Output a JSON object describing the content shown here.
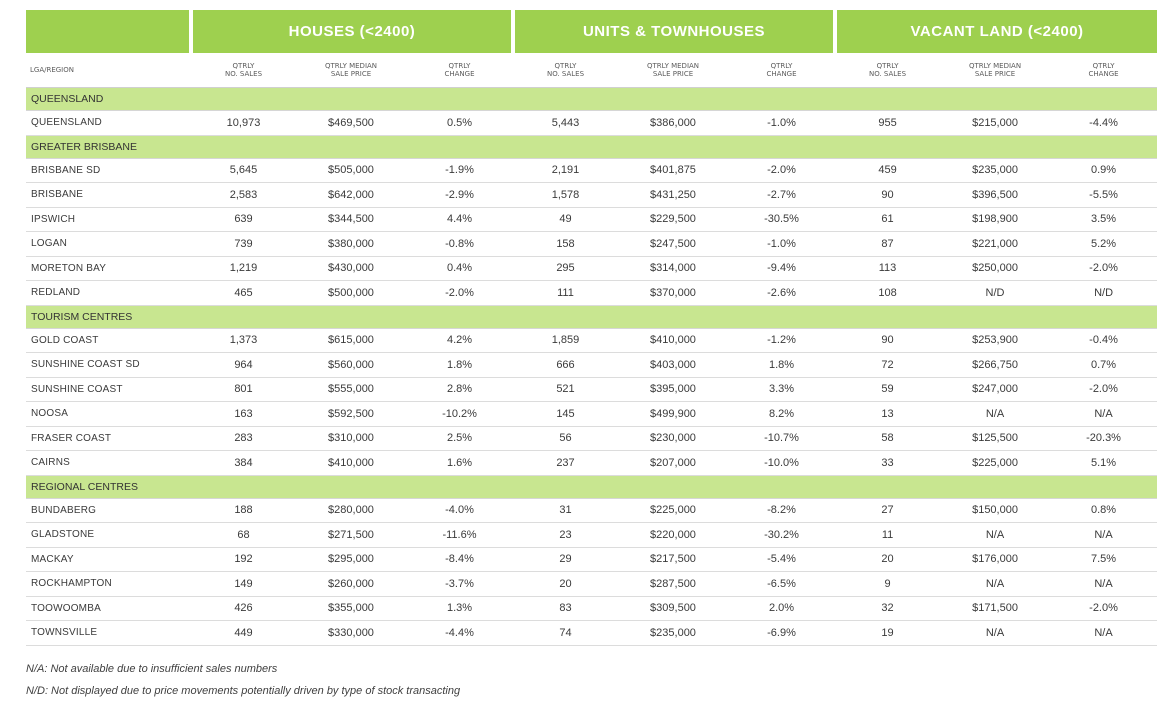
{
  "table": {
    "groups": [
      {
        "label": ""
      },
      {
        "label": "HOUSES (<2400)"
      },
      {
        "label": "UNITS & TOWNHOUSES"
      },
      {
        "label": "VACANT LAND (<2400)"
      }
    ],
    "columns": [
      "LGA/REGION",
      "QTRLY\nNO. SALES",
      "QTRLY MEDIAN\nSALE PRICE",
      "QTRLY\nCHANGE",
      "QTRLY\nNO. SALES",
      "QTRLY MEDIAN\nSALE PRICE",
      "QTRLY\nCHANGE",
      "QTRLY\nNO. SALES",
      "QTRLY MEDIAN\nSALE PRICE",
      "QTRLY\nCHANGE"
    ],
    "sections": [
      {
        "title": "QUEENSLAND",
        "rows": [
          [
            "QUEENSLAND",
            "10,973",
            "$469,500",
            "0.5%",
            "5,443",
            "$386,000",
            "-1.0%",
            "955",
            "$215,000",
            "-4.4%"
          ]
        ]
      },
      {
        "title": "GREATER BRISBANE",
        "rows": [
          [
            "BRISBANE SD",
            "5,645",
            "$505,000",
            "-1.9%",
            "2,191",
            "$401,875",
            "-2.0%",
            "459",
            "$235,000",
            "0.9%"
          ],
          [
            "BRISBANE",
            "2,583",
            "$642,000",
            "-2.9%",
            "1,578",
            "$431,250",
            "-2.7%",
            "90",
            "$396,500",
            "-5.5%"
          ],
          [
            "IPSWICH",
            "639",
            "$344,500",
            "4.4%",
            "49",
            "$229,500",
            "-30.5%",
            "61",
            "$198,900",
            "3.5%"
          ],
          [
            "LOGAN",
            "739",
            "$380,000",
            "-0.8%",
            "158",
            "$247,500",
            "-1.0%",
            "87",
            "$221,000",
            "5.2%"
          ],
          [
            "MORETON BAY",
            "1,219",
            "$430,000",
            "0.4%",
            "295",
            "$314,000",
            "-9.4%",
            "113",
            "$250,000",
            "-2.0%"
          ],
          [
            "REDLAND",
            "465",
            "$500,000",
            "-2.0%",
            "111",
            "$370,000",
            "-2.6%",
            "108",
            "N/D",
            "N/D"
          ]
        ]
      },
      {
        "title": "TOURISM CENTRES",
        "rows": [
          [
            "GOLD COAST",
            "1,373",
            "$615,000",
            "4.2%",
            "1,859",
            "$410,000",
            "-1.2%",
            "90",
            "$253,900",
            "-0.4%"
          ],
          [
            "SUNSHINE COAST SD",
            "964",
            "$560,000",
            "1.8%",
            "666",
            "$403,000",
            "1.8%",
            "72",
            "$266,750",
            "0.7%"
          ],
          [
            "SUNSHINE COAST",
            "801",
            "$555,000",
            "2.8%",
            "521",
            "$395,000",
            "3.3%",
            "59",
            "$247,000",
            "-2.0%"
          ],
          [
            "NOOSA",
            "163",
            "$592,500",
            "-10.2%",
            "145",
            "$499,900",
            "8.2%",
            "13",
            "N/A",
            "N/A"
          ],
          [
            "FRASER COAST",
            "283",
            "$310,000",
            "2.5%",
            "56",
            "$230,000",
            "-10.7%",
            "58",
            "$125,500",
            "-20.3%"
          ],
          [
            "CAIRNS",
            "384",
            "$410,000",
            "1.6%",
            "237",
            "$207,000",
            "-10.0%",
            "33",
            "$225,000",
            "5.1%"
          ]
        ]
      },
      {
        "title": "REGIONAL CENTRES",
        "rows": [
          [
            "BUNDABERG",
            "188",
            "$280,000",
            "-4.0%",
            "31",
            "$225,000",
            "-8.2%",
            "27",
            "$150,000",
            "0.8%"
          ],
          [
            "GLADSTONE",
            "68",
            "$271,500",
            "-11.6%",
            "23",
            "$220,000",
            "-30.2%",
            "11",
            "N/A",
            "N/A"
          ],
          [
            "MACKAY",
            "192",
            "$295,000",
            "-8.4%",
            "29",
            "$217,500",
            "-5.4%",
            "20",
            "$176,000",
            "7.5%"
          ],
          [
            "ROCKHAMPTON",
            "149",
            "$260,000",
            "-3.7%",
            "20",
            "$287,500",
            "-6.5%",
            "9",
            "N/A",
            "N/A"
          ],
          [
            "TOOWOOMBA",
            "426",
            "$355,000",
            "1.3%",
            "83",
            "$309,500",
            "2.0%",
            "32",
            "$171,500",
            "-2.0%"
          ],
          [
            "TOWNSVILLE",
            "449",
            "$330,000",
            "-4.4%",
            "74",
            "$235,000",
            "-6.9%",
            "19",
            "N/A",
            "N/A"
          ]
        ]
      }
    ]
  },
  "notes": [
    "N/A: Not available due to insufficient sales numbers",
    "N/D: Not displayed due to price movements potentially driven by type of stock transacting"
  ],
  "colors": {
    "header_green": "#9ed04f",
    "section_green": "#c8e690"
  }
}
